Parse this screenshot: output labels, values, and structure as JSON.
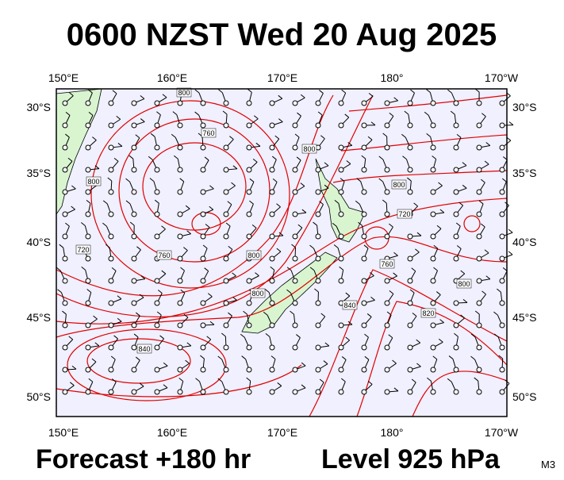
{
  "title": "0600 NZST Wed 20 Aug 2025",
  "longitude_labels": [
    "150°E",
    "160°E",
    "170°E",
    "180°",
    "170°W"
  ],
  "latitude_labels": [
    "30°S",
    "35°S",
    "40°S",
    "45°S",
    "50°S"
  ],
  "contour_labels": [
    "800",
    "760",
    "800",
    "800",
    "800",
    "720",
    "720",
    "760",
    "800",
    "760",
    "800",
    "800",
    "820",
    "840",
    "840"
  ],
  "footer": {
    "forecast": "Forecast +180 hr",
    "level": "Level 925 hPa",
    "model": "M3"
  }
}
